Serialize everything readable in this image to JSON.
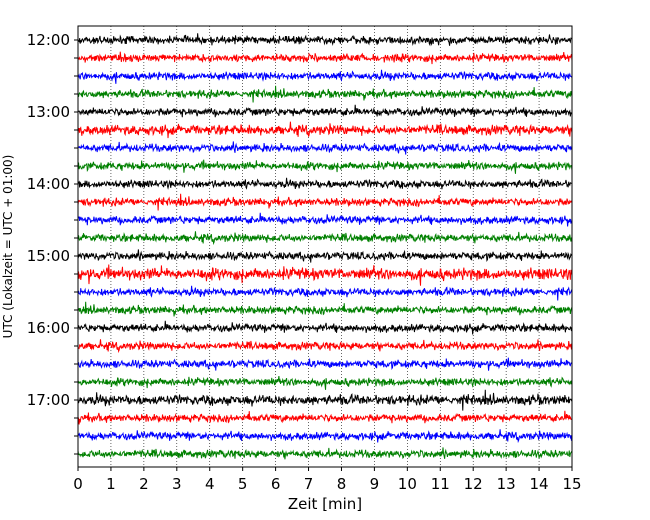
{
  "chart_data": {
    "type": "line",
    "subtype": "helicorder",
    "xlabel": "Zeit  [min]",
    "ylabel": "UTC (Lokalzeit = UTC + 01:00)",
    "xlim": [
      0,
      15
    ],
    "x_ticks": [
      "0",
      "1",
      "2",
      "3",
      "4",
      "5",
      "6",
      "7",
      "8",
      "9",
      "10",
      "11",
      "12",
      "13",
      "14",
      "15"
    ],
    "y_tick_labels": [
      "12:00",
      "13:00",
      "14:00",
      "15:00",
      "16:00",
      "17:00"
    ],
    "x_grid": "dotted vertical at each minute",
    "y_grid": false,
    "legend": "none",
    "minutes_per_line": 15,
    "line_colors_cycle": [
      "#000000",
      "#ff0000",
      "#0000ff",
      "#008000"
    ],
    "series": [
      {
        "start": "12:00",
        "color": "#000000",
        "amplitude": 0.2
      },
      {
        "start": "12:15",
        "color": "#ff0000",
        "amplitude": 0.2
      },
      {
        "start": "12:30",
        "color": "#0000ff",
        "amplitude": 0.2
      },
      {
        "start": "12:45",
        "color": "#008000",
        "amplitude": 0.2
      },
      {
        "start": "13:00",
        "color": "#000000",
        "amplitude": 0.2
      },
      {
        "start": "13:15",
        "color": "#ff0000",
        "amplitude": 0.25
      },
      {
        "start": "13:30",
        "color": "#0000ff",
        "amplitude": 0.2
      },
      {
        "start": "13:45",
        "color": "#008000",
        "amplitude": 0.2
      },
      {
        "start": "14:00",
        "color": "#000000",
        "amplitude": 0.2
      },
      {
        "start": "14:15",
        "color": "#ff0000",
        "amplitude": 0.2
      },
      {
        "start": "14:30",
        "color": "#0000ff",
        "amplitude": 0.2
      },
      {
        "start": "14:45",
        "color": "#008000",
        "amplitude": 0.2
      },
      {
        "start": "15:00",
        "color": "#000000",
        "amplitude": 0.2
      },
      {
        "start": "15:15",
        "color": "#ff0000",
        "amplitude": 0.3
      },
      {
        "start": "15:30",
        "color": "#0000ff",
        "amplitude": 0.2
      },
      {
        "start": "15:45",
        "color": "#008000",
        "amplitude": 0.2
      },
      {
        "start": "16:00",
        "color": "#000000",
        "amplitude": 0.2
      },
      {
        "start": "16:15",
        "color": "#ff0000",
        "amplitude": 0.2
      },
      {
        "start": "16:30",
        "color": "#0000ff",
        "amplitude": 0.2
      },
      {
        "start": "16:45",
        "color": "#008000",
        "amplitude": 0.2
      },
      {
        "start": "17:00",
        "color": "#000000",
        "amplitude": 0.25
      },
      {
        "start": "17:15",
        "color": "#ff0000",
        "amplitude": 0.2
      },
      {
        "start": "17:30",
        "color": "#0000ff",
        "amplitude": 0.2
      },
      {
        "start": "17:45",
        "color": "#008000",
        "amplitude": 0.2
      }
    ]
  }
}
